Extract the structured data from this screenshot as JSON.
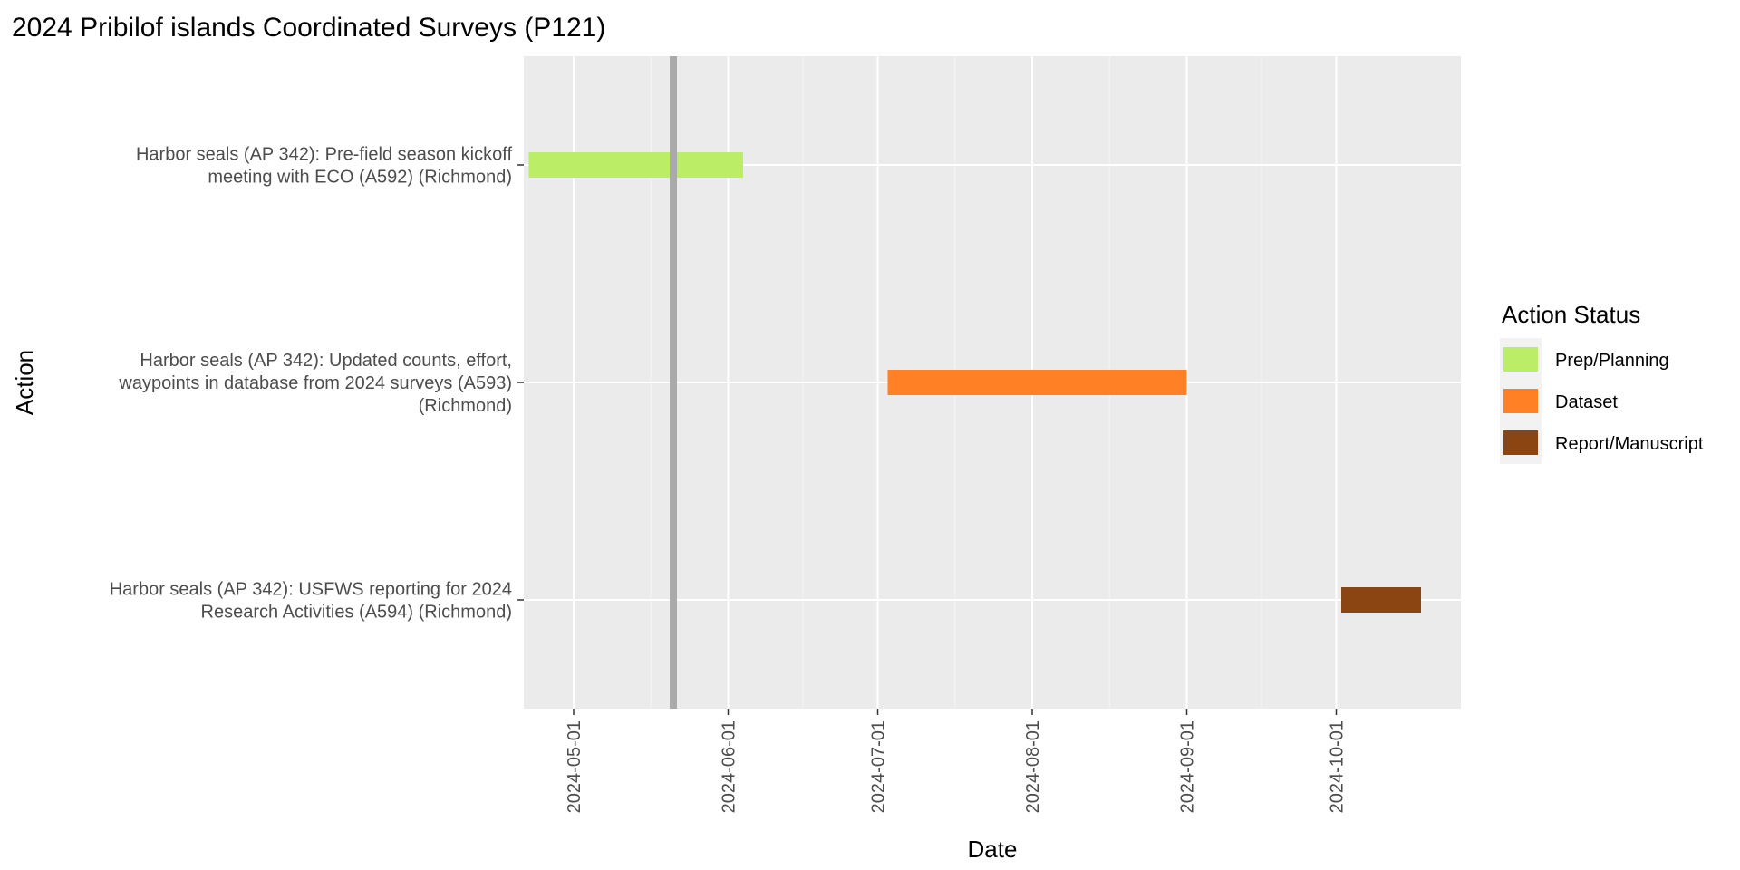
{
  "chart_data": {
    "type": "gantt",
    "title": "2024 Pribilof islands Coordinated Surveys (P121)",
    "xlabel": "Date",
    "ylabel": "Action",
    "x_ticks": [
      "2024-05-01",
      "2024-06-01",
      "2024-07-01",
      "2024-08-01",
      "2024-09-01",
      "2024-10-01"
    ],
    "xlim": [
      "2024-04-21",
      "2024-10-26"
    ],
    "today_marker": "2024-05-21",
    "grid": true,
    "legend": {
      "title": "Action Status",
      "placement": "right",
      "items": [
        {
          "label": "Prep/Planning",
          "color": "#bbee66"
        },
        {
          "label": "Dataset",
          "color": "#ff8025"
        },
        {
          "label": "Report/Manuscript",
          "color": "#8b4513"
        }
      ]
    },
    "tasks": [
      {
        "label_lines": [
          "Harbor seals (AP 342): Pre-field season kickoff",
          "meeting with ECO (A592) (Richmond)"
        ],
        "start": "2024-04-22",
        "end": "2024-06-04",
        "status": "Prep/Planning"
      },
      {
        "label_lines": [
          "Harbor seals (AP 342): Updated counts, effort,",
          "waypoints in database from 2024 surveys (A593)",
          "(Richmond)"
        ],
        "start": "2024-07-03",
        "end": "2024-09-01",
        "status": "Dataset"
      },
      {
        "label_lines": [
          "Harbor seals (AP 342): USFWS reporting for 2024",
          "Research Activities (A594) (Richmond)"
        ],
        "start": "2024-10-02",
        "end": "2024-10-18",
        "status": "Report/Manuscript"
      }
    ]
  }
}
